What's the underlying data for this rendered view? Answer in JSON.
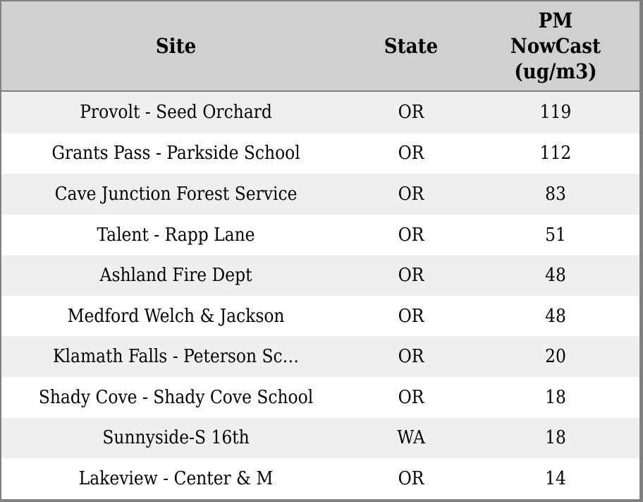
{
  "table": {
    "title": "PM NowCast monitoring sites table",
    "columns": [
      {
        "key": "site",
        "label": "Site"
      },
      {
        "key": "state",
        "label": "State"
      },
      {
        "key": "pm",
        "label": "PM\nNowCast\n(ug/m3)"
      }
    ],
    "rows": [
      {
        "site": "Provolt - Seed Orchard",
        "state": "OR",
        "pm": "119"
      },
      {
        "site": "Grants Pass - Parkside School",
        "state": "OR",
        "pm": "112"
      },
      {
        "site": "Cave Junction Forest Service",
        "state": "OR",
        "pm": "83"
      },
      {
        "site": "Talent - Rapp Lane",
        "state": "OR",
        "pm": "51"
      },
      {
        "site": "Ashland Fire Dept",
        "state": "OR",
        "pm": "48"
      },
      {
        "site": "Medford Welch & Jackson",
        "state": "OR",
        "pm": "48"
      },
      {
        "site": "Klamath Falls - Peterson Sc…",
        "state": "OR",
        "pm": "20"
      },
      {
        "site": "Shady Cove - Shady Cove School",
        "state": "OR",
        "pm": "18"
      },
      {
        "site": "Sunnyside-S 16th",
        "state": "WA",
        "pm": "18"
      },
      {
        "site": "Lakeview - Center & M",
        "state": "OR",
        "pm": "14"
      }
    ]
  },
  "colors": {
    "header_bg": "#d0d0d0",
    "row_stripe_bg": "#efefef",
    "row_plain_bg": "#ffffff",
    "border": "#808080",
    "text": "#000000"
  }
}
